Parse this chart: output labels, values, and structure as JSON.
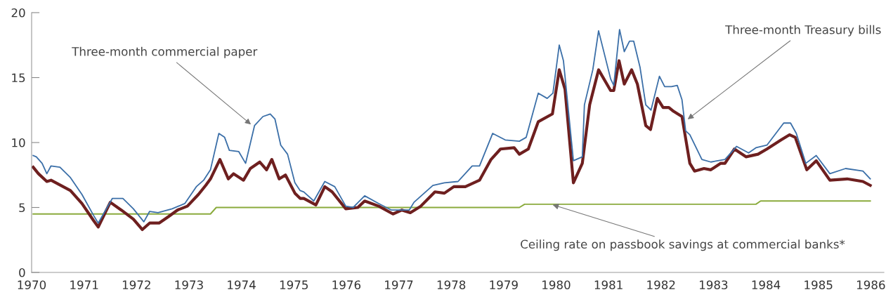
{
  "chart_data": {
    "type": "line",
    "series": [
      {
        "color": "#3b6fa8",
        "x": [
          1970.03,
          1970.09,
          1970.2,
          1970.29,
          1970.37,
          1970.54,
          1970.74,
          1970.96,
          1971.18,
          1971.27,
          1971.54,
          1971.74,
          1971.94,
          1972.14,
          1972.25,
          1972.41,
          1972.68,
          1972.92,
          1973.14,
          1973.28,
          1973.41,
          1973.57,
          1973.68,
          1973.77,
          1973.95,
          1974.08,
          1974.25,
          1974.41,
          1974.55,
          1974.64,
          1974.75,
          1974.88,
          1975.02,
          1975.12,
          1975.19,
          1975.38,
          1975.59,
          1975.78,
          1975.99,
          1976.13,
          1976.35,
          1976.62,
          1976.86,
          1977.2,
          1977.29,
          1977.65,
          1977.87,
          1978.13,
          1978.4,
          1978.54,
          1978.79,
          1979.03,
          1979.3,
          1979.43,
          1979.66,
          1979.83,
          1979.94,
          1980.06,
          1980.14,
          1980.33,
          1980.5,
          1980.54,
          1980.7,
          1980.81,
          1981.04,
          1981.1,
          1981.21,
          1981.3,
          1981.4,
          1981.48,
          1981.6,
          1981.71,
          1981.81,
          1981.97,
          1982.07,
          1982.2,
          1982.31,
          1982.4,
          1982.47,
          1982.55,
          1982.78,
          1982.95,
          1983.22,
          1983.44,
          1983.67,
          1983.81,
          1984.02,
          1984.34,
          1984.47,
          1984.58,
          1984.76,
          1984.96,
          1985.22,
          1985.52,
          1985.85,
          1985.99
        ],
        "values": [
          9.0,
          8.9,
          8.4,
          7.6,
          8.2,
          8.1,
          7.3,
          6.0,
          4.4,
          3.8,
          5.7,
          5.7,
          4.9,
          3.9,
          4.7,
          4.6,
          4.9,
          5.3,
          6.6,
          7.1,
          7.9,
          10.7,
          10.4,
          9.4,
          9.3,
          8.4,
          11.3,
          12.0,
          12.2,
          11.8,
          9.8,
          9.1,
          6.9,
          6.3,
          6.2,
          5.5,
          7.0,
          6.6,
          5.1,
          5.0,
          5.9,
          5.3,
          4.8,
          4.8,
          5.4,
          6.7,
          6.9,
          7.0,
          8.2,
          8.2,
          10.7,
          10.2,
          10.1,
          10.4,
          13.8,
          13.4,
          13.8,
          17.5,
          16.3,
          8.6,
          8.9,
          12.9,
          15.6,
          18.6,
          14.9,
          14.4,
          18.7,
          17.0,
          17.8,
          17.8,
          15.8,
          12.9,
          12.5,
          15.1,
          14.3,
          14.3,
          14.4,
          13.3,
          10.9,
          10.6,
          8.7,
          8.5,
          8.7,
          9.7,
          9.2,
          9.6,
          9.8,
          11.5,
          11.5,
          10.7,
          8.4,
          9.0,
          7.6,
          8.0,
          7.8,
          7.2
        ]
      },
      {
        "color": "#6e1f1f",
        "x": [
          1970.03,
          1970.13,
          1970.29,
          1970.37,
          1970.74,
          1970.96,
          1971.18,
          1971.27,
          1971.5,
          1971.71,
          1971.94,
          1972.11,
          1972.25,
          1972.43,
          1972.61,
          1972.78,
          1972.97,
          1973.18,
          1973.32,
          1973.41,
          1973.59,
          1973.75,
          1973.85,
          1974.04,
          1974.17,
          1974.35,
          1974.48,
          1974.58,
          1974.72,
          1974.84,
          1975.02,
          1975.12,
          1975.19,
          1975.42,
          1975.59,
          1975.73,
          1975.99,
          1976.22,
          1976.35,
          1976.62,
          1976.89,
          1977.06,
          1977.22,
          1977.42,
          1977.69,
          1977.87,
          1978.05,
          1978.27,
          1978.54,
          1978.76,
          1978.94,
          1979.2,
          1979.3,
          1979.47,
          1979.66,
          1979.93,
          1980.06,
          1980.17,
          1980.33,
          1980.5,
          1980.64,
          1980.81,
          1981.04,
          1981.1,
          1981.2,
          1981.3,
          1981.44,
          1981.55,
          1981.71,
          1981.8,
          1981.93,
          1982.04,
          1982.15,
          1982.24,
          1982.4,
          1982.55,
          1982.64,
          1982.82,
          1982.95,
          1983.14,
          1983.22,
          1983.4,
          1983.62,
          1983.85,
          1984.02,
          1984.29,
          1984.45,
          1984.56,
          1984.78,
          1984.96,
          1985.22,
          1985.55,
          1985.85,
          1985.99
        ],
        "values": [
          8.1,
          7.6,
          7.0,
          7.1,
          6.3,
          5.3,
          4.0,
          3.5,
          5.4,
          4.8,
          4.1,
          3.3,
          3.8,
          3.8,
          4.3,
          4.8,
          5.1,
          6.0,
          6.7,
          7.2,
          8.7,
          7.2,
          7.6,
          7.1,
          8.0,
          8.5,
          7.9,
          8.7,
          7.2,
          7.5,
          6.1,
          5.7,
          5.7,
          5.2,
          6.6,
          6.2,
          4.9,
          5.0,
          5.5,
          5.1,
          4.5,
          4.8,
          4.6,
          5.1,
          6.2,
          6.1,
          6.6,
          6.6,
          7.1,
          8.7,
          9.5,
          9.6,
          9.1,
          9.5,
          11.6,
          12.2,
          15.6,
          14.1,
          6.9,
          8.4,
          12.9,
          15.6,
          14.0,
          14.0,
          16.3,
          14.5,
          15.6,
          14.5,
          11.3,
          11.0,
          13.4,
          12.7,
          12.7,
          12.4,
          12.0,
          8.4,
          7.8,
          8.0,
          7.9,
          8.4,
          8.4,
          9.5,
          8.9,
          9.1,
          9.5,
          10.2,
          10.6,
          10.4,
          7.9,
          8.6,
          7.1,
          7.2,
          7.0,
          6.7
        ]
      },
      {
        "color": "#8aab3c",
        "x": [
          1970.03,
          1973.41,
          1973.52,
          1979.3,
          1979.4,
          1983.81,
          1983.9,
          1985.99
        ],
        "values": [
          4.5,
          4.5,
          5.0,
          5.0,
          5.25,
          5.25,
          5.5,
          5.5
        ]
      }
    ],
    "xlim": [
      1970,
      1986.25
    ],
    "xticks": [
      1970,
      1971,
      1972,
      1973,
      1974,
      1975,
      1976,
      1977,
      1978,
      1979,
      1980,
      1981,
      1982,
      1983,
      1984,
      1985,
      1986
    ],
    "ylim": [
      0,
      20
    ],
    "yticks": [
      0,
      5,
      10,
      15,
      20
    ],
    "grid": false,
    "legend": false,
    "annotations": [
      {
        "text": "Three-month commercial paper",
        "x": 1974.21,
        "y": 11.3
      },
      {
        "text": "Three-month Treasury bills",
        "x": 1982.48,
        "y": 11.7
      },
      {
        "text": "Ceiling rate on passbook savings at commercial banks*",
        "x": 1979.9,
        "y": 5.25
      }
    ]
  }
}
